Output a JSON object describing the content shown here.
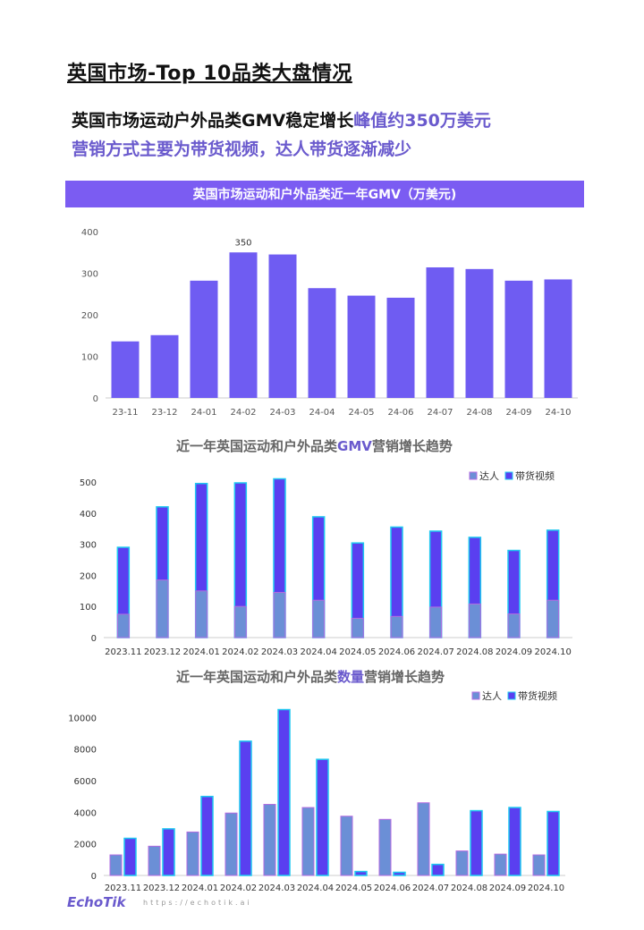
{
  "page": {
    "title": "英国市场-Top 10品类大盘情况",
    "headline1_black": "英国市场运动户外品类GMV稳定增长",
    "headline1_accent": "峰值约350万美元",
    "headline2": "营销方式主要为带货视频，达人带货逐渐减少",
    "chart1_banner": "英国市场运动和户外品类近一年GMV（万美元)",
    "chart2_title_pre": "近一年英国运动和户外品类",
    "chart2_title_hl": "GMV",
    "chart2_title_post": "营销增长趋势",
    "chart3_title_pre": "近一年英国运动和户外品类",
    "chart3_title_hl": "数量",
    "chart3_title_post": "营销增长趋势",
    "footer_logo": "EchoTik",
    "footer_url": "https://echotik.ai"
  },
  "colors": {
    "bar": "#6f5cf2",
    "creator": "#6b8fd6",
    "video": "#5a3ff0",
    "outline": "#1ec8f0",
    "creator_outline": "#b36be0"
  },
  "chart_data": [
    {
      "type": "bar",
      "title": "英国市场运动和户外品类近一年GMV（万美元)",
      "categories": [
        "23-11",
        "23-12",
        "24-01",
        "24-02",
        "24-03",
        "24-04",
        "24-05",
        "24-06",
        "24-07",
        "24-08",
        "24-09",
        "24-10"
      ],
      "values": [
        136,
        151,
        282,
        350,
        345,
        264,
        246,
        241,
        314,
        310,
        282,
        285
      ],
      "annotations": [
        {
          "category": "24-02",
          "label": "350"
        }
      ],
      "yticks": [
        0,
        100,
        200,
        300,
        400
      ],
      "ylim": [
        0,
        400
      ]
    },
    {
      "type": "bar",
      "title": "近一年英国运动和户外品类GMV营销增长趋势",
      "categories": [
        "2023.11",
        "2023.12",
        "2024.01",
        "2024.02",
        "2024.03",
        "2024.04",
        "2024.05",
        "2024.06",
        "2024.07",
        "2024.08",
        "2024.09",
        "2024.10"
      ],
      "series": [
        {
          "name": "达人",
          "values": [
            75,
            185,
            150,
            100,
            145,
            120,
            62,
            68,
            98,
            108,
            76,
            120
          ]
        },
        {
          "name": "带货视频",
          "values": [
            290,
            420,
            495,
            497,
            510,
            388,
            304,
            355,
            342,
            322,
            280,
            345
          ]
        }
      ],
      "yticks": [
        0,
        100,
        200,
        300,
        400,
        500
      ],
      "ylim": [
        0,
        520
      ],
      "legend": "top-right"
    },
    {
      "type": "bar",
      "title": "近一年英国运动和户外品类数量营销增长趋势",
      "categories": [
        "2023.11",
        "2023.12",
        "2024.01",
        "2024.02",
        "2024.03",
        "2024.04",
        "2024.05",
        "2024.06",
        "2024.07",
        "2024.08",
        "2024.09",
        "2024.10"
      ],
      "series": [
        {
          "name": "达人",
          "values": [
            1300,
            1850,
            2750,
            3950,
            4500,
            4300,
            3750,
            3550,
            4600,
            1550,
            1350,
            1300
          ]
        },
        {
          "name": "带货视频",
          "values": [
            2350,
            2950,
            5000,
            8500,
            10500,
            7350,
            250,
            200,
            700,
            4100,
            4300,
            4050
          ]
        }
      ],
      "yticks": [
        0,
        2000,
        4000,
        6000,
        8000,
        10000
      ],
      "ylim": [
        0,
        10700
      ],
      "legend": "top-right"
    }
  ]
}
